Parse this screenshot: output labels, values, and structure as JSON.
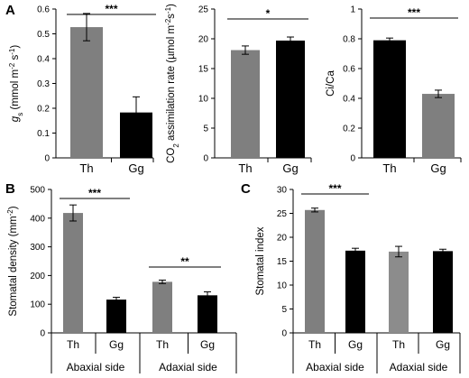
{
  "chart_data": [
    {
      "panel": "A",
      "type": "bar",
      "categories": [
        "Th",
        "Gg"
      ],
      "values": [
        0.527,
        0.183
      ],
      "errors": [
        0.055,
        0.063
      ],
      "colors": [
        "#7f7f7f",
        "#000000"
      ],
      "ylabel": "gs (mmol m-2 s-1)",
      "ylabel_parts": {
        "var": "g",
        "sub": "s",
        "rest": " (mmol m",
        "sup1": "-2",
        "mid": " s",
        "sup2": "-1",
        "end": ")"
      },
      "ylim": [
        0,
        0.6
      ],
      "yticks": [
        "0",
        "0.1",
        "0.2",
        "0.3",
        "0.4",
        "0.5",
        "0.6"
      ],
      "significance": [
        {
          "from": 0,
          "to": 1,
          "label": "***"
        }
      ]
    },
    {
      "type": "bar",
      "categories": [
        "Th",
        "Gg"
      ],
      "values": [
        18.1,
        19.7
      ],
      "errors": [
        0.7,
        0.6
      ],
      "colors": [
        "#7f7f7f",
        "#000000"
      ],
      "ylabel": "CO2 assimilation rate (µmol m-2s-1)",
      "ylabel_parts": {
        "pre": "CO",
        "sub": "2",
        "rest": " assimilation rate (µmol m",
        "sup1": "-2",
        "mid": "s",
        "sup2": "-1",
        "end": ")"
      },
      "ylim": [
        0,
        25
      ],
      "yticks": [
        "0",
        "5",
        "10",
        "15",
        "20",
        "25"
      ],
      "significance": [
        {
          "from": 0,
          "to": 1,
          "label": "*"
        }
      ]
    },
    {
      "type": "bar",
      "categories": [
        "Th",
        "Gg"
      ],
      "values": [
        0.79,
        0.43
      ],
      "errors": [
        0.015,
        0.025
      ],
      "colors": [
        "#000000",
        "#7f7f7f"
      ],
      "ylabel": "Ci/Ca",
      "ylim": [
        0,
        1
      ],
      "yticks": [
        "0",
        "0.2",
        "0.4",
        "0.6",
        "0.8",
        "1"
      ],
      "significance": [
        {
          "from": 0,
          "to": 1,
          "label": "***"
        }
      ]
    },
    {
      "panel": "B",
      "type": "bar",
      "groups": [
        "Abaxial side",
        "Adaxial side"
      ],
      "categories": [
        "Th",
        "Gg",
        "Th",
        "Gg"
      ],
      "values": [
        418,
        116,
        178,
        131
      ],
      "errors": [
        28,
        8,
        6,
        12
      ],
      "colors": [
        "#7f7f7f",
        "#000000",
        "#7f7f7f",
        "#000000"
      ],
      "ylabel": "Stomatal density (mm-2)",
      "ylabel_parts": {
        "rest": "Stomatal density (mm",
        "sup1": "-2",
        "end": ")"
      },
      "ylim": [
        0,
        500
      ],
      "yticks": [
        "0",
        "100",
        "200",
        "300",
        "400",
        "500"
      ],
      "significance": [
        {
          "from": 0,
          "to": 1,
          "label": "***"
        },
        {
          "from": 2,
          "to": 3,
          "label": "**"
        }
      ]
    },
    {
      "panel": "C",
      "type": "bar",
      "groups": [
        "Abaxial side",
        "Adaxial side"
      ],
      "categories": [
        "Th",
        "Gg",
        "Th",
        "Gg"
      ],
      "values": [
        25.7,
        17.2,
        17.0,
        17.1
      ],
      "errors": [
        0.4,
        0.5,
        1.1,
        0.4
      ],
      "colors": [
        "#7f7f7f",
        "#000000",
        "#8c8c8c",
        "#000000"
      ],
      "ylabel": "Stomatal index",
      "ylim": [
        0,
        30
      ],
      "yticks": [
        "0",
        "5",
        "10",
        "15",
        "20",
        "25",
        "30"
      ],
      "significance": [
        {
          "from": 0,
          "to": 1,
          "label": "***"
        }
      ]
    }
  ]
}
